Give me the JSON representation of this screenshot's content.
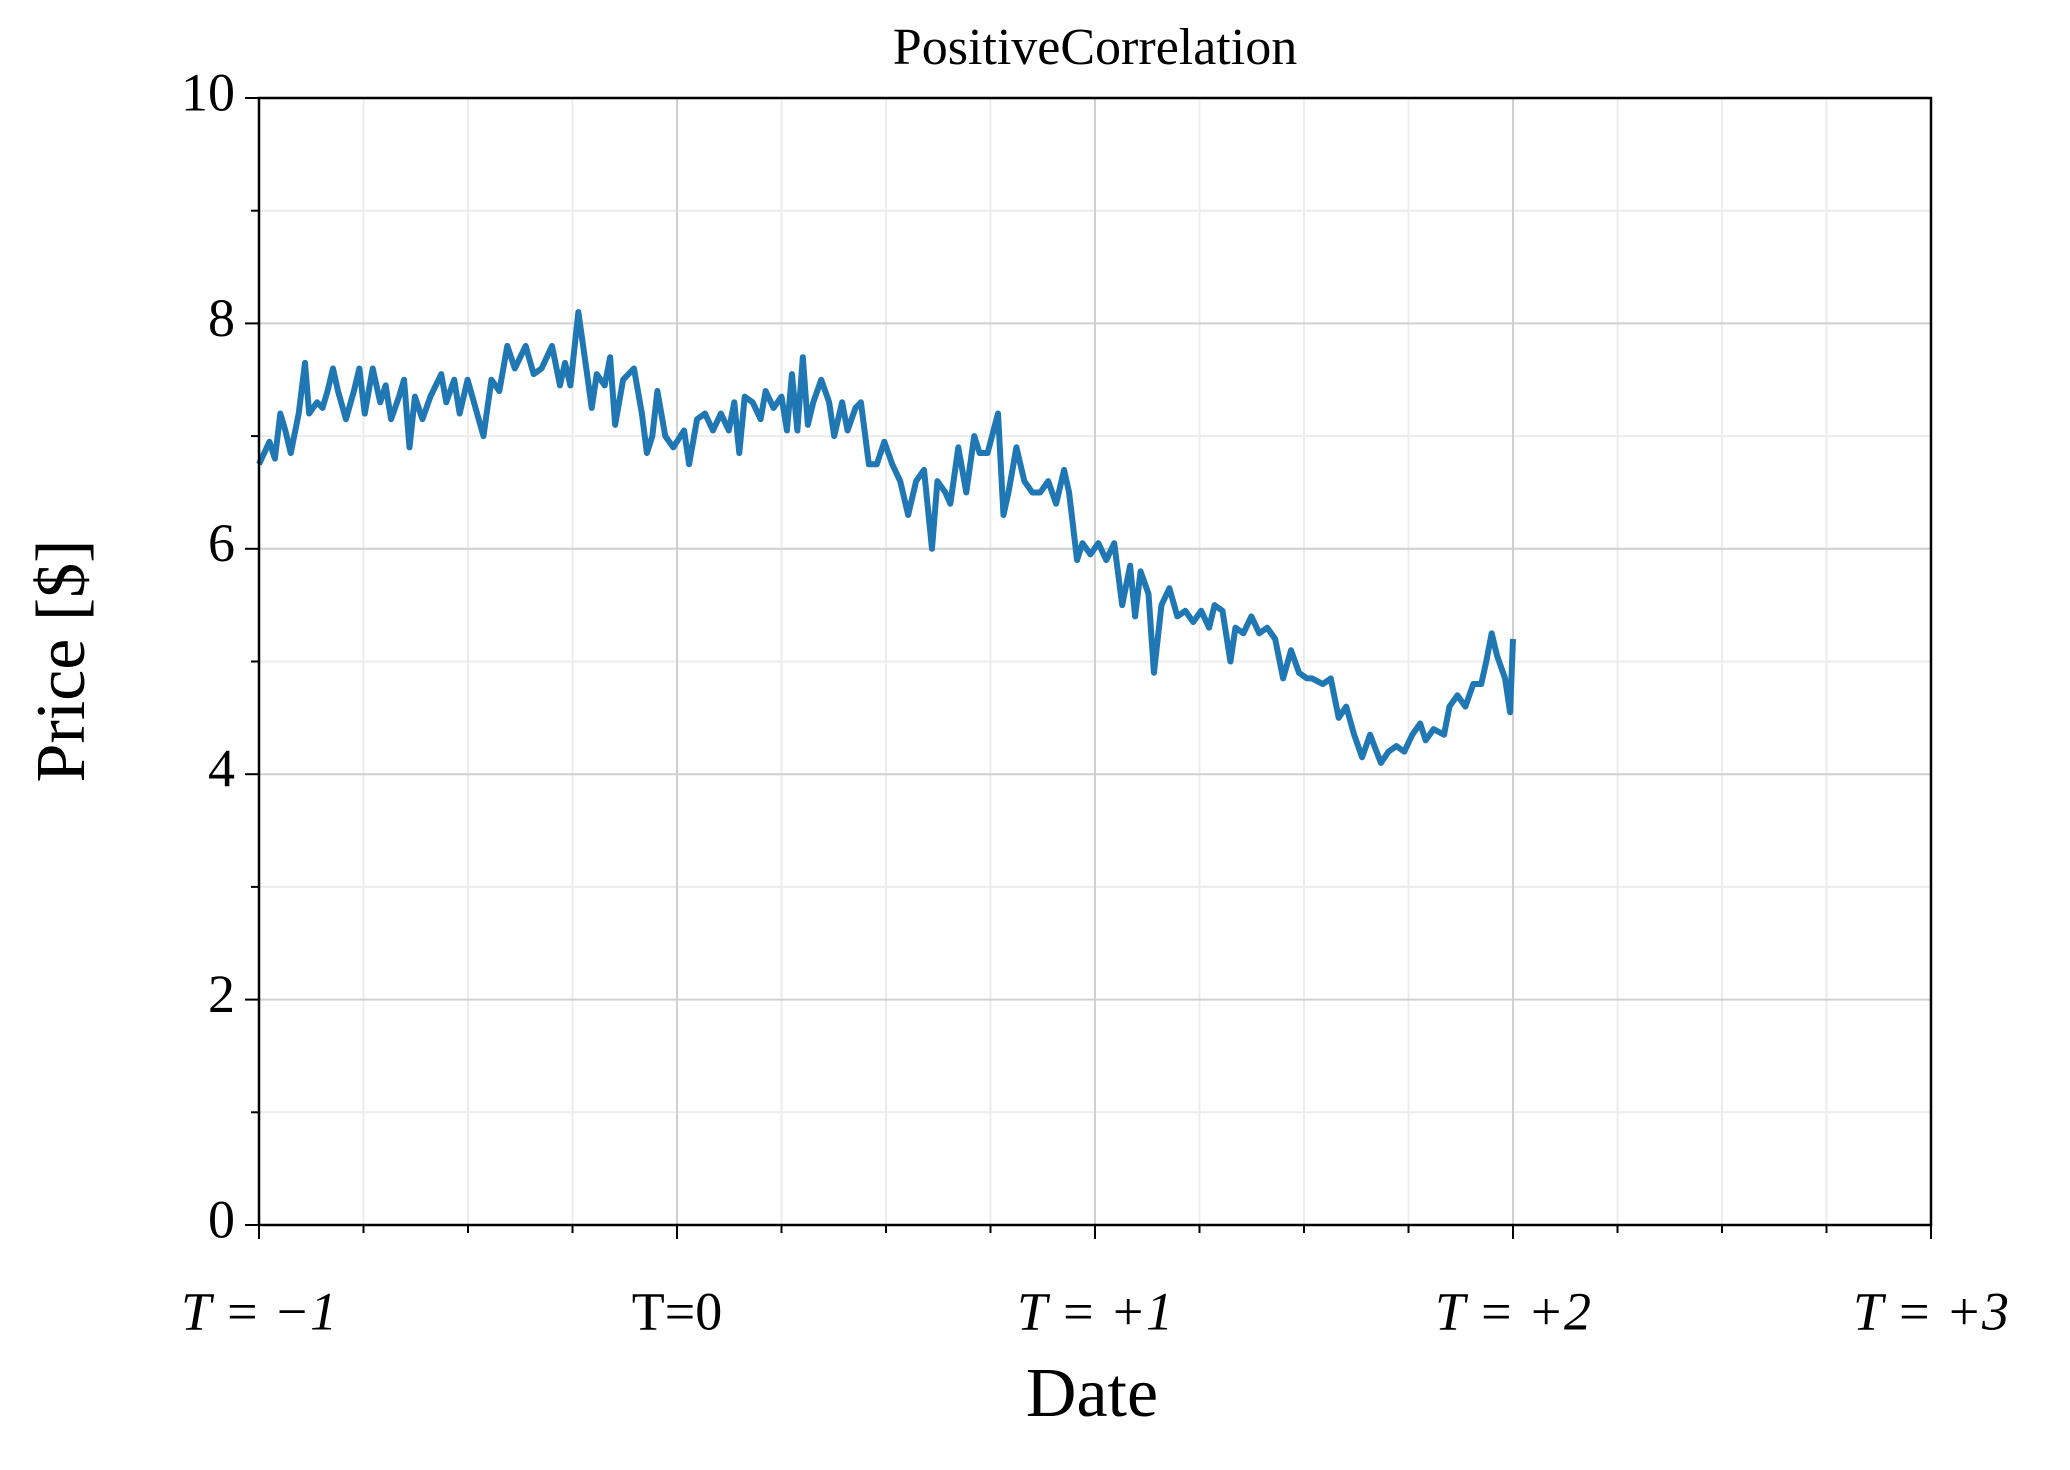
{
  "chart_data": {
    "type": "line",
    "title": "PositiveCorrelation",
    "x_label": "Date",
    "y_label": "Price [$]",
    "xlim": [
      -1,
      3
    ],
    "ylim": [
      0,
      10
    ],
    "xticks": [
      {
        "value": -1,
        "label": "T = −1"
      },
      {
        "value": 0,
        "label": "T=0"
      },
      {
        "value": 1,
        "label": "T = +1"
      },
      {
        "value": 2,
        "label": "T = +2"
      },
      {
        "value": 3,
        "label": "T = +3"
      }
    ],
    "yticks": [
      0,
      2,
      4,
      6,
      8,
      10
    ],
    "x_minor_ticks": [
      -0.75,
      -0.5,
      -0.25,
      0.25,
      0.5,
      0.75,
      1.25,
      1.5,
      1.75,
      2.25,
      2.5,
      2.75
    ],
    "y_minor_ticks": [
      1,
      3,
      5,
      7,
      9
    ],
    "grid": true,
    "x": [
      -1,
      -0.975,
      -0.962,
      -0.949,
      -0.937,
      -0.924,
      -0.905,
      -0.89,
      -0.88,
      -0.861,
      -0.848,
      -0.836,
      -0.823,
      -0.811,
      -0.792,
      -0.773,
      -0.76,
      -0.747,
      -0.728,
      -0.71,
      -0.697,
      -0.684,
      -0.665,
      -0.653,
      -0.64,
      -0.627,
      -0.609,
      -0.59,
      -0.564,
      -0.552,
      -0.533,
      -0.52,
      -0.501,
      -0.482,
      -0.463,
      -0.444,
      -0.425,
      -0.406,
      -0.388,
      -0.362,
      -0.343,
      -0.324,
      -0.299,
      -0.28,
      -0.268,
      -0.255,
      -0.236,
      -0.217,
      -0.204,
      -0.192,
      -0.173,
      -0.16,
      -0.148,
      -0.129,
      -0.103,
      -0.084,
      -0.072,
      -0.059,
      -0.047,
      -0.028,
      -0.009,
      0.017,
      0.029,
      0.048,
      0.067,
      0.086,
      0.105,
      0.124,
      0.137,
      0.149,
      0.162,
      0.181,
      0.2,
      0.212,
      0.231,
      0.25,
      0.263,
      0.275,
      0.288,
      0.301,
      0.313,
      0.326,
      0.345,
      0.364,
      0.376,
      0.395,
      0.408,
      0.427,
      0.44,
      0.459,
      0.478,
      0.496,
      0.515,
      0.534,
      0.553,
      0.572,
      0.591,
      0.61,
      0.623,
      0.642,
      0.654,
      0.673,
      0.692,
      0.711,
      0.724,
      0.743,
      0.768,
      0.781,
      0.793,
      0.812,
      0.831,
      0.85,
      0.869,
      0.888,
      0.907,
      0.926,
      0.938,
      0.957,
      0.97,
      0.989,
      1.008,
      1.027,
      1.046,
      1.065,
      1.084,
      1.096,
      1.109,
      1.128,
      1.141,
      1.159,
      1.178,
      1.197,
      1.216,
      1.235,
      1.254,
      1.273,
      1.286,
      1.305,
      1.324,
      1.336,
      1.355,
      1.374,
      1.393,
      1.412,
      1.431,
      1.45,
      1.469,
      1.488,
      1.507,
      1.519,
      1.545,
      1.564,
      1.583,
      1.601,
      1.62,
      1.639,
      1.658,
      1.684,
      1.702,
      1.721,
      1.74,
      1.759,
      1.778,
      1.791,
      1.81,
      1.835,
      1.848,
      1.867,
      1.886,
      1.905,
      1.924,
      1.936,
      1.949,
      1.962,
      1.981,
      1.993,
      2.0
    ],
    "series": [
      {
        "color": "#1f77b4",
        "values": [
          6.75,
          6.95,
          6.8,
          7.2,
          7.05,
          6.85,
          7.2,
          7.65,
          7.2,
          7.3,
          7.25,
          7.4,
          7.6,
          7.4,
          7.15,
          7.4,
          7.6,
          7.2,
          7.6,
          7.3,
          7.45,
          7.15,
          7.35,
          7.5,
          6.9,
          7.35,
          7.15,
          7.35,
          7.55,
          7.3,
          7.5,
          7.2,
          7.5,
          7.25,
          7.0,
          7.5,
          7.4,
          7.8,
          7.6,
          7.8,
          7.55,
          7.6,
          7.8,
          7.45,
          7.65,
          7.45,
          8.1,
          7.6,
          7.25,
          7.55,
          7.45,
          7.7,
          7.1,
          7.5,
          7.6,
          7.2,
          6.85,
          7.0,
          7.4,
          7.0,
          6.9,
          7.05,
          6.75,
          7.15,
          7.2,
          7.05,
          7.2,
          7.05,
          7.3,
          6.85,
          7.35,
          7.3,
          7.15,
          7.4,
          7.25,
          7.35,
          7.05,
          7.55,
          7.05,
          7.7,
          7.1,
          7.3,
          7.5,
          7.3,
          7.0,
          7.3,
          7.05,
          7.25,
          7.3,
          6.75,
          6.75,
          6.95,
          6.75,
          6.6,
          6.3,
          6.6,
          6.7,
          6.0,
          6.6,
          6.5,
          6.4,
          6.9,
          6.5,
          7.0,
          6.85,
          6.85,
          7.2,
          6.3,
          6.5,
          6.9,
          6.6,
          6.5,
          6.5,
          6.6,
          6.4,
          6.7,
          6.5,
          5.9,
          6.05,
          5.95,
          6.05,
          5.9,
          6.05,
          5.5,
          5.85,
          5.4,
          5.8,
          5.6,
          4.9,
          5.5,
          5.65,
          5.4,
          5.45,
          5.35,
          5.45,
          5.3,
          5.5,
          5.45,
          5.0,
          5.3,
          5.25,
          5.4,
          5.25,
          5.3,
          5.2,
          4.85,
          5.1,
          4.9,
          4.85,
          4.85,
          4.8,
          4.85,
          4.5,
          4.6,
          4.35,
          4.15,
          4.35,
          4.1,
          4.2,
          4.25,
          4.2,
          4.35,
          4.45,
          4.3,
          4.4,
          4.35,
          4.6,
          4.7,
          4.6,
          4.8,
          4.8,
          5.0,
          5.25,
          5.05,
          4.85,
          4.55,
          5.2
        ]
      }
    ]
  }
}
